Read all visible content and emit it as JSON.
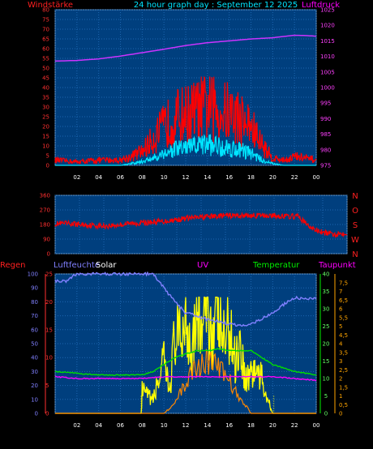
{
  "chart_data": [
    {
      "type": "line",
      "title": "24 hour graph day : September 12 2025",
      "left_label": "Windstärke",
      "right_label": "Luftdruck",
      "left_ticks": [
        "0",
        "5",
        "10",
        "15",
        "20",
        "25",
        "30",
        "35",
        "40",
        "45",
        "50",
        "55",
        "60",
        "65",
        "70",
        "75",
        "80"
      ],
      "right_ticks": [
        "975",
        "980",
        "985",
        "990",
        "995",
        "1000",
        "1005",
        "1010",
        "1015",
        "1020",
        "1025"
      ],
      "x_ticks": [
        "02",
        "04",
        "06",
        "08",
        "10",
        "12",
        "14",
        "16",
        "18",
        "20",
        "22",
        "00"
      ],
      "ylim_left": [
        0,
        80
      ],
      "ylim_right": [
        975,
        1025
      ],
      "colors": {
        "gust": "#ff0000",
        "wind": "#00e5ff",
        "pressure": "#cc33ff"
      },
      "series": [
        {
          "key": "pressure",
          "x": [
            0,
            2,
            4,
            6,
            8,
            10,
            12,
            14,
            16,
            18,
            20,
            22,
            23,
            24
          ],
          "values": [
            1008.5,
            1008.7,
            1009.2,
            1010.1,
            1011.2,
            1012.3,
            1013.5,
            1014.4,
            1015.0,
            1015.6,
            1016.0,
            1016.8,
            1016.7,
            1016.5
          ]
        },
        {
          "key": "gust",
          "x": [
            0,
            2,
            4,
            6,
            7,
            8,
            9,
            10,
            11,
            12,
            13,
            14,
            15,
            16,
            17,
            18,
            19,
            20,
            21,
            22,
            23,
            24
          ],
          "values": [
            3,
            2,
            3,
            3,
            5,
            8,
            15,
            22,
            27,
            29,
            31,
            33,
            31,
            30,
            27,
            22,
            12,
            4,
            3,
            5,
            4,
            3
          ]
        },
        {
          "key": "wind",
          "x": [
            0,
            2,
            4,
            6,
            7,
            8,
            9,
            10,
            11,
            12,
            13,
            14,
            15,
            16,
            17,
            18,
            19,
            20,
            21,
            22,
            23,
            24
          ],
          "values": [
            0,
            0,
            0,
            0,
            1,
            2,
            4,
            7,
            9,
            10,
            11,
            12,
            11,
            10,
            9,
            7,
            3,
            1,
            0,
            0,
            0,
            0
          ]
        }
      ]
    },
    {
      "type": "scatter",
      "left_ticks": [
        "0",
        "90",
        "180",
        "270",
        "360"
      ],
      "right_labels": [
        "N",
        "W",
        "S",
        "O",
        "N"
      ],
      "ylim": [
        0,
        360
      ],
      "color": "#ff0000",
      "series": [
        {
          "key": "direction",
          "x": [
            0,
            1,
            2,
            3,
            4,
            5,
            6,
            7,
            8,
            9,
            10,
            11,
            12,
            13,
            14,
            15,
            16,
            17,
            18,
            19,
            20,
            21,
            22,
            23,
            24
          ],
          "values": [
            185,
            185,
            180,
            175,
            170,
            175,
            185,
            190,
            195,
            200,
            210,
            220,
            225,
            230,
            235,
            235,
            235,
            235,
            235,
            230,
            230,
            160,
            130,
            120,
            130
          ]
        }
      ]
    },
    {
      "type": "line",
      "labels": {
        "regen": "Regen",
        "luftfeuchte": "Luftfeuchte",
        "solar": "Solar",
        "uv": "UV",
        "temperatur": "Temperatur",
        "taupunkt": "Taupunkt"
      },
      "colors": {
        "regen": "#ff0000",
        "luftfeuchte": "#8080ff",
        "solar": "#ffff00",
        "uv": "#cc33ff",
        "temperatur": "#00dd00",
        "taupunkt": "#ff00ff",
        "uvbar": "#ff8800"
      },
      "regen_ticks": [
        "0",
        "5",
        "10",
        "15",
        "20",
        "25"
      ],
      "humidity_ticks": [
        "0",
        "10",
        "20",
        "30",
        "40",
        "50",
        "60",
        "70",
        "80",
        "90",
        "100"
      ],
      "temp_ticks": [
        "0",
        "5",
        "10",
        "15",
        "20",
        "25",
        "30",
        "35",
        "40"
      ],
      "uv_ticks": [
        "0",
        "0,5",
        "1",
        "1,5",
        "2",
        "2,5",
        "3",
        "3,5",
        "4",
        "4,5",
        "5",
        "5,5",
        "6",
        "6,5",
        "7",
        "7,5"
      ],
      "x_ticks": [
        "02",
        "04",
        "06",
        "08",
        "10",
        "12",
        "14",
        "16",
        "18",
        "20",
        "22",
        "00"
      ],
      "series": [
        {
          "key": "luftfeuchte",
          "x": [
            0,
            1,
            2,
            3,
            4,
            5,
            6,
            7,
            8,
            9,
            10,
            11,
            12,
            13,
            14,
            15,
            16,
            17,
            18,
            19,
            20,
            21,
            22,
            23,
            24
          ],
          "values": [
            95,
            95,
            100,
            100,
            100,
            100,
            100,
            100,
            100,
            100,
            90,
            80,
            72,
            70,
            67,
            66,
            64,
            63,
            64,
            68,
            72,
            78,
            83,
            82,
            82
          ]
        },
        {
          "key": "temperatur",
          "x": [
            0,
            2,
            4,
            6,
            8,
            9,
            10,
            11,
            12,
            13,
            14,
            15,
            16,
            17,
            18,
            19,
            20,
            22,
            24
          ],
          "values": [
            12,
            11.5,
            11,
            11,
            11,
            12,
            14,
            16,
            17,
            18,
            18,
            18.5,
            18,
            18,
            18,
            16,
            14,
            12,
            11
          ]
        },
        {
          "key": "taupunkt",
          "x": [
            0,
            2,
            4,
            6,
            8,
            10,
            12,
            14,
            16,
            18,
            20,
            22,
            24
          ],
          "values": [
            10.5,
            10,
            10,
            10,
            10,
            10.5,
            10.5,
            10.5,
            10.5,
            10.5,
            10.5,
            10,
            9.5
          ]
        },
        {
          "key": "solar",
          "x": [
            0,
            7.9,
            8,
            9,
            9.5,
            10,
            10.5,
            11,
            11.5,
            12,
            12.5,
            13,
            13.5,
            14,
            14.5,
            15,
            15.5,
            16,
            16.5,
            17,
            17.5,
            18,
            18.5,
            19,
            19.5,
            20,
            24
          ],
          "values": [
            0,
            0,
            200,
            120,
            300,
            450,
            200,
            700,
            650,
            900,
            600,
            1000,
            750,
            980,
            700,
            900,
            650,
            800,
            500,
            650,
            300,
            380,
            390,
            300,
            150,
            0,
            0
          ]
        },
        {
          "key": "uvbar",
          "x": [
            0,
            10,
            10.5,
            11,
            11.5,
            12,
            12.5,
            13,
            13.5,
            14,
            14.5,
            15,
            15.5,
            16,
            16.5,
            17,
            17.5,
            18,
            24
          ],
          "values": [
            0,
            0,
            0.3,
            0.6,
            1.2,
            1.8,
            2.4,
            2.8,
            3.0,
            3.2,
            3.0,
            2.8,
            2.4,
            2.0,
            1.4,
            0.8,
            0.5,
            0,
            0
          ]
        }
      ]
    }
  ]
}
